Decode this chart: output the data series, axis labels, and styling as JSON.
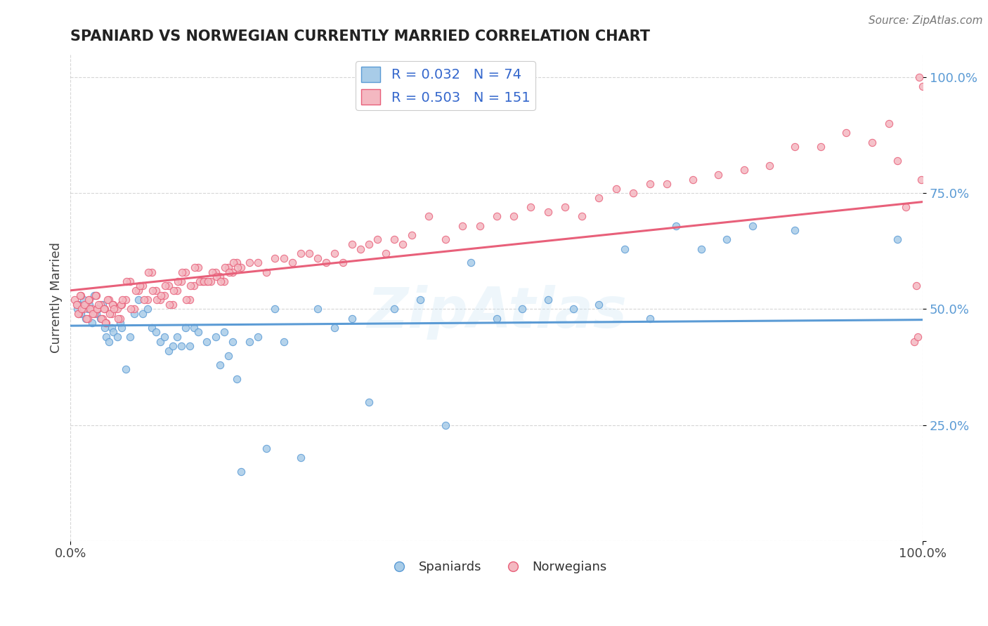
{
  "title": "SPANIARD VS NORWEGIAN CURRENTLY MARRIED CORRELATION CHART",
  "source_text": "Source: ZipAtlas.com",
  "ylabel": "Currently Married",
  "x_min": 0.0,
  "x_max": 1.0,
  "y_min": 0.0,
  "y_max": 1.05,
  "y_ticks": [
    0.0,
    0.25,
    0.5,
    0.75,
    1.0
  ],
  "y_tick_labels": [
    "",
    "25.0%",
    "50.0%",
    "75.0%",
    "100.0%"
  ],
  "x_ticks": [
    0.0,
    1.0
  ],
  "x_tick_labels": [
    "0.0%",
    "100.0%"
  ],
  "spaniard_R": 0.032,
  "spaniard_N": 74,
  "norwegian_R": 0.503,
  "norwegian_N": 151,
  "watermark": "ZipAtlas",
  "background_color": "#ffffff",
  "grid_color": "#cccccc",
  "spaniard_scatter_color": "#a8cce8",
  "norwegian_scatter_color": "#f4b8c1",
  "spaniard_line_color": "#5b9bd5",
  "norwegian_line_color": "#e8607a",
  "legend_label_1": "R = 0.032   N = 74",
  "legend_label_2": "R = 0.503   N = 151",
  "bottom_legend_1": "Spaniards",
  "bottom_legend_2": "Norwegians",
  "spaniard_x": [
    0.008,
    0.01,
    0.012,
    0.015,
    0.018,
    0.02,
    0.022,
    0.025,
    0.028,
    0.03,
    0.032,
    0.035,
    0.038,
    0.04,
    0.042,
    0.045,
    0.048,
    0.05,
    0.055,
    0.058,
    0.06,
    0.065,
    0.07,
    0.075,
    0.08,
    0.085,
    0.09,
    0.095,
    0.1,
    0.105,
    0.11,
    0.115,
    0.12,
    0.125,
    0.13,
    0.135,
    0.14,
    0.145,
    0.15,
    0.16,
    0.17,
    0.175,
    0.18,
    0.185,
    0.19,
    0.195,
    0.2,
    0.21,
    0.22,
    0.23,
    0.24,
    0.25,
    0.27,
    0.29,
    0.31,
    0.33,
    0.35,
    0.38,
    0.41,
    0.44,
    0.47,
    0.5,
    0.53,
    0.56,
    0.59,
    0.62,
    0.65,
    0.68,
    0.71,
    0.74,
    0.77,
    0.8,
    0.85,
    0.97
  ],
  "spaniard_y": [
    0.5,
    0.51,
    0.49,
    0.52,
    0.48,
    0.5,
    0.51,
    0.47,
    0.53,
    0.49,
    0.5,
    0.48,
    0.51,
    0.46,
    0.44,
    0.43,
    0.46,
    0.45,
    0.44,
    0.47,
    0.46,
    0.37,
    0.44,
    0.49,
    0.52,
    0.49,
    0.5,
    0.46,
    0.45,
    0.43,
    0.44,
    0.41,
    0.42,
    0.44,
    0.42,
    0.46,
    0.42,
    0.46,
    0.45,
    0.43,
    0.44,
    0.38,
    0.45,
    0.4,
    0.43,
    0.35,
    0.15,
    0.43,
    0.44,
    0.2,
    0.5,
    0.43,
    0.18,
    0.5,
    0.46,
    0.48,
    0.3,
    0.5,
    0.52,
    0.25,
    0.6,
    0.48,
    0.5,
    0.52,
    0.5,
    0.51,
    0.63,
    0.48,
    0.68,
    0.63,
    0.65,
    0.68,
    0.67,
    0.65
  ],
  "norwegian_x": [
    0.005,
    0.008,
    0.01,
    0.012,
    0.015,
    0.018,
    0.02,
    0.022,
    0.025,
    0.028,
    0.03,
    0.032,
    0.035,
    0.038,
    0.04,
    0.042,
    0.045,
    0.048,
    0.05,
    0.055,
    0.058,
    0.06,
    0.065,
    0.07,
    0.075,
    0.08,
    0.085,
    0.09,
    0.095,
    0.1,
    0.105,
    0.11,
    0.115,
    0.12,
    0.125,
    0.13,
    0.135,
    0.14,
    0.145,
    0.15,
    0.155,
    0.16,
    0.165,
    0.17,
    0.175,
    0.18,
    0.185,
    0.19,
    0.195,
    0.2,
    0.21,
    0.22,
    0.23,
    0.24,
    0.25,
    0.26,
    0.27,
    0.28,
    0.29,
    0.3,
    0.31,
    0.32,
    0.33,
    0.34,
    0.35,
    0.36,
    0.37,
    0.38,
    0.39,
    0.4,
    0.42,
    0.44,
    0.46,
    0.48,
    0.5,
    0.52,
    0.54,
    0.56,
    0.58,
    0.6,
    0.62,
    0.64,
    0.66,
    0.68,
    0.7,
    0.73,
    0.76,
    0.79,
    0.82,
    0.85,
    0.88,
    0.91,
    0.94,
    0.96,
    0.97,
    0.98,
    0.99,
    0.992,
    0.994,
    0.996,
    0.998,
    1.0,
    0.007,
    0.009,
    0.011,
    0.013,
    0.016,
    0.019,
    0.021,
    0.023,
    0.026,
    0.029,
    0.031,
    0.033,
    0.036,
    0.039,
    0.041,
    0.043,
    0.046,
    0.049,
    0.051,
    0.056,
    0.059,
    0.061,
    0.066,
    0.071,
    0.076,
    0.081,
    0.086,
    0.091,
    0.096,
    0.101,
    0.106,
    0.111,
    0.116,
    0.121,
    0.126,
    0.131,
    0.136,
    0.141,
    0.146,
    0.151,
    0.156,
    0.161,
    0.166,
    0.171,
    0.176,
    0.181,
    0.186,
    0.191,
    0.196
  ],
  "norwegian_y": [
    0.52,
    0.51,
    0.49,
    0.53,
    0.5,
    0.51,
    0.48,
    0.52,
    0.5,
    0.49,
    0.53,
    0.5,
    0.51,
    0.48,
    0.5,
    0.47,
    0.52,
    0.49,
    0.51,
    0.5,
    0.48,
    0.51,
    0.52,
    0.56,
    0.5,
    0.54,
    0.55,
    0.52,
    0.58,
    0.54,
    0.52,
    0.53,
    0.55,
    0.51,
    0.54,
    0.56,
    0.58,
    0.52,
    0.55,
    0.59,
    0.56,
    0.56,
    0.56,
    0.58,
    0.57,
    0.56,
    0.59,
    0.58,
    0.6,
    0.59,
    0.6,
    0.6,
    0.58,
    0.61,
    0.61,
    0.6,
    0.62,
    0.62,
    0.61,
    0.6,
    0.62,
    0.6,
    0.64,
    0.63,
    0.64,
    0.65,
    0.62,
    0.65,
    0.64,
    0.66,
    0.7,
    0.65,
    0.68,
    0.68,
    0.7,
    0.7,
    0.72,
    0.71,
    0.72,
    0.7,
    0.74,
    0.76,
    0.75,
    0.77,
    0.77,
    0.78,
    0.79,
    0.8,
    0.81,
    0.85,
    0.85,
    0.88,
    0.86,
    0.9,
    0.82,
    0.72,
    0.43,
    0.55,
    0.44,
    1.0,
    0.78,
    0.98,
    0.51,
    0.49,
    0.53,
    0.5,
    0.51,
    0.48,
    0.52,
    0.5,
    0.49,
    0.53,
    0.5,
    0.51,
    0.48,
    0.5,
    0.47,
    0.52,
    0.49,
    0.51,
    0.5,
    0.48,
    0.51,
    0.52,
    0.56,
    0.5,
    0.54,
    0.55,
    0.52,
    0.58,
    0.54,
    0.52,
    0.53,
    0.55,
    0.51,
    0.54,
    0.56,
    0.58,
    0.52,
    0.55,
    0.59,
    0.56,
    0.56,
    0.56,
    0.58,
    0.57,
    0.56,
    0.59,
    0.58,
    0.6,
    0.59
  ]
}
